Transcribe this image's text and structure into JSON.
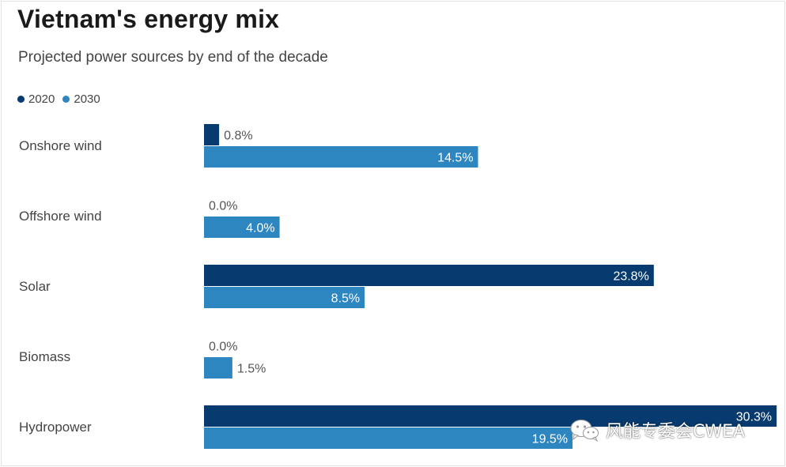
{
  "title": "Vietnam's energy mix",
  "subtitle": "Projected power sources by end of the decade",
  "colors": {
    "series_2020": "#073a6e",
    "series_2030": "#2e86c1"
  },
  "watermark": {
    "text": "风能专委会CWEA",
    "icon": "wechat-logo-icon"
  },
  "chart_data": {
    "type": "bar",
    "orientation": "horizontal",
    "categories": [
      "Onshore wind",
      "Offshore wind",
      "Solar",
      "Biomass",
      "Hydropower"
    ],
    "series": [
      {
        "name": "2020",
        "values": [
          0.8,
          0.0,
          23.8,
          0.0,
          30.3
        ]
      },
      {
        "name": "2030",
        "values": [
          14.5,
          4.0,
          8.5,
          1.5,
          19.5
        ]
      }
    ],
    "value_labels": [
      [
        "0.8%",
        "0.0%",
        "23.8%",
        "0.0%",
        "30.3%"
      ],
      [
        "14.5%",
        "4.0%",
        "8.5%",
        "1.5%",
        "19.5%"
      ]
    ],
    "legend_position": "top-left",
    "grid": false
  }
}
